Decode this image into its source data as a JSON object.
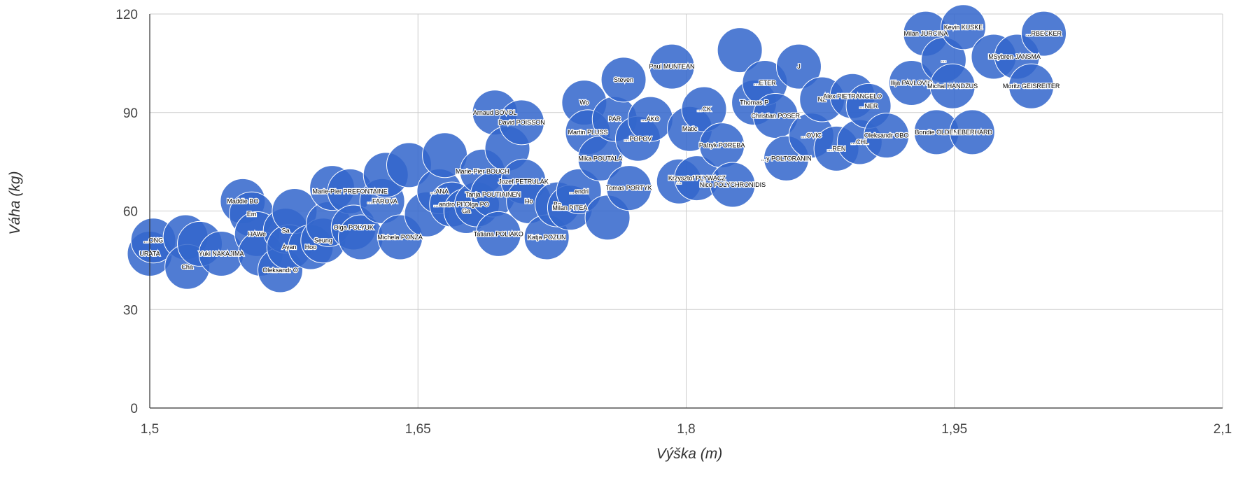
{
  "chart_data": {
    "type": "scatter",
    "subtype": "bubble",
    "xlabel": "Výška (m)",
    "ylabel": "Váha (kg)",
    "xlim": [
      1.5,
      2.1
    ],
    "ylim": [
      0,
      120
    ],
    "x_ticks": [
      "1,5",
      "1,65",
      "1,8",
      "1,95",
      "2,1"
    ],
    "y_ticks": [
      "0",
      "30",
      "60",
      "90",
      "120"
    ],
    "grid": true,
    "legend": "none",
    "colors": {
      "bubble": "#3366cc",
      "bubble_stroke": "#ffffff",
      "grid": "#cccccc",
      "axis": "#333333"
    },
    "points": [
      {
        "x": 1.5,
        "y": 47,
        "label": "URATA"
      },
      {
        "x": 1.502,
        "y": 51,
        "label": "...ONG"
      },
      {
        "x": 1.52,
        "y": 52,
        "label": ""
      },
      {
        "x": 1.521,
        "y": 43,
        "label": "Cha"
      },
      {
        "x": 1.528,
        "y": 50,
        "label": ""
      },
      {
        "x": 1.54,
        "y": 47,
        "label": "Yuki NAKAJIMA"
      },
      {
        "x": 1.552,
        "y": 63,
        "label": "Maddie BO"
      },
      {
        "x": 1.557,
        "y": 59,
        "label": "Em"
      },
      {
        "x": 1.56,
        "y": 53,
        "label": "HAWe"
      },
      {
        "x": 1.562,
        "y": 47,
        "label": ""
      },
      {
        "x": 1.573,
        "y": 42,
        "label": "Oleksandr O"
      },
      {
        "x": 1.576,
        "y": 54,
        "label": "Sa"
      },
      {
        "x": 1.578,
        "y": 49,
        "label": "Ayan"
      },
      {
        "x": 1.581,
        "y": 60,
        "label": ""
      },
      {
        "x": 1.59,
        "y": 49,
        "label": "Hoo"
      },
      {
        "x": 1.597,
        "y": 51,
        "label": "Seung"
      },
      {
        "x": 1.6,
        "y": 56,
        "label": ""
      },
      {
        "x": 1.602,
        "y": 67,
        "label": "..."
      },
      {
        "x": 1.612,
        "y": 66,
        "label": "Marie-Pier PREFONTAINE"
      },
      {
        "x": 1.614,
        "y": 55,
        "label": "Olga POLYUK"
      },
      {
        "x": 1.618,
        "y": 52,
        "label": ""
      },
      {
        "x": 1.63,
        "y": 63,
        "label": "...FAROVA"
      },
      {
        "x": 1.632,
        "y": 71,
        "label": ""
      },
      {
        "x": 1.64,
        "y": 52,
        "label": "Michela PONZA"
      },
      {
        "x": 1.645,
        "y": 74,
        "label": ""
      },
      {
        "x": 1.655,
        "y": 59,
        "label": ""
      },
      {
        "x": 1.662,
        "y": 66,
        "label": "...ANA"
      },
      {
        "x": 1.665,
        "y": 77,
        "label": ""
      },
      {
        "x": 1.669,
        "y": 62,
        "label": "...andro PITT"
      },
      {
        "x": 1.677,
        "y": 60,
        "label": "Ga"
      },
      {
        "x": 1.683,
        "y": 62,
        "label": "Olga PO"
      },
      {
        "x": 1.686,
        "y": 72,
        "label": "Marie-Pier BOUCH"
      },
      {
        "x": 1.692,
        "y": 65,
        "label": "Tanja POUTIAINEN"
      },
      {
        "x": 1.693,
        "y": 90,
        "label": "Arnaud BOVOL"
      },
      {
        "x": 1.695,
        "y": 53,
        "label": "Tatiana POLIAKO"
      },
      {
        "x": 1.7,
        "y": 79,
        "label": ""
      },
      {
        "x": 1.708,
        "y": 87,
        "label": "David POISSON"
      },
      {
        "x": 1.709,
        "y": 69,
        "label": "Jozef PETRULAK"
      },
      {
        "x": 1.712,
        "y": 63,
        "label": "Ho"
      },
      {
        "x": 1.722,
        "y": 52,
        "label": "Katja POZUN"
      },
      {
        "x": 1.728,
        "y": 62,
        "label": "Bo"
      },
      {
        "x": 1.735,
        "y": 61,
        "label": "Milan PITEA"
      },
      {
        "x": 1.74,
        "y": 66,
        "label": "...endri"
      },
      {
        "x": 1.743,
        "y": 93,
        "label": "Wo"
      },
      {
        "x": 1.745,
        "y": 84,
        "label": "Martin PLUSS"
      },
      {
        "x": 1.752,
        "y": 76,
        "label": "Mika POUTALA"
      },
      {
        "x": 1.756,
        "y": 58,
        "label": ""
      },
      {
        "x": 1.76,
        "y": 88,
        "label": "PAR"
      },
      {
        "x": 1.765,
        "y": 100,
        "label": "Steven"
      },
      {
        "x": 1.768,
        "y": 67,
        "label": "Tomas PORTYK"
      },
      {
        "x": 1.773,
        "y": 82,
        "label": "...POPOV"
      },
      {
        "x": 1.78,
        "y": 88,
        "label": "...AKO"
      },
      {
        "x": 1.792,
        "y": 104,
        "label": "Paul MUNTEAN"
      },
      {
        "x": 1.796,
        "y": 69,
        "label": "..."
      },
      {
        "x": 1.802,
        "y": 85,
        "label": "Matic"
      },
      {
        "x": 1.806,
        "y": 70,
        "label": "Krzysztof PLYWACZ"
      },
      {
        "x": 1.81,
        "y": 91,
        "label": "...CK"
      },
      {
        "x": 1.82,
        "y": 80,
        "label": "Patryk POREBA"
      },
      {
        "x": 1.826,
        "y": 68,
        "label": "Nico POLYCHRONIDIS"
      },
      {
        "x": 1.83,
        "y": 109,
        "label": ""
      },
      {
        "x": 1.838,
        "y": 93,
        "label": "Thomas P"
      },
      {
        "x": 1.844,
        "y": 99,
        "label": "...ETER"
      },
      {
        "x": 1.85,
        "y": 89,
        "label": "Christian POSER"
      },
      {
        "x": 1.856,
        "y": 76,
        "label": "...y POLTORANIN"
      },
      {
        "x": 1.863,
        "y": 104,
        "label": "J"
      },
      {
        "x": 1.87,
        "y": 83,
        "label": "...OVIC"
      },
      {
        "x": 1.876,
        "y": 94,
        "label": "NZ"
      },
      {
        "x": 1.884,
        "y": 79,
        "label": "...REN"
      },
      {
        "x": 1.893,
        "y": 95,
        "label": "Alex PIETRANGELO"
      },
      {
        "x": 1.897,
        "y": 81,
        "label": "...CHL"
      },
      {
        "x": 1.902,
        "y": 92,
        "label": "...NER"
      },
      {
        "x": 1.912,
        "y": 83,
        "label": "Oleksandr OBO"
      },
      {
        "x": 1.926,
        "y": 99,
        "label": "Ilija PAVLOVIC"
      },
      {
        "x": 1.934,
        "y": 114,
        "label": "Milan JURCINA"
      },
      {
        "x": 1.94,
        "y": 84,
        "label": "Bondie OLDEN"
      },
      {
        "x": 1.944,
        "y": 106,
        "label": "..."
      },
      {
        "x": 1.949,
        "y": 98,
        "label": "Michal HANDZUS"
      },
      {
        "x": 1.955,
        "y": 116,
        "label": "Kevin KUSKE"
      },
      {
        "x": 1.96,
        "y": 84,
        "label": "...EBERHARD"
      },
      {
        "x": 1.972,
        "y": 107,
        "label": "Mar"
      },
      {
        "x": 1.985,
        "y": 107,
        "label": "Sybren JANSMA"
      },
      {
        "x": 1.993,
        "y": 98,
        "label": "Moritz GEISREITER"
      },
      {
        "x": 2.0,
        "y": 114,
        "label": "...RBECKER"
      }
    ]
  }
}
